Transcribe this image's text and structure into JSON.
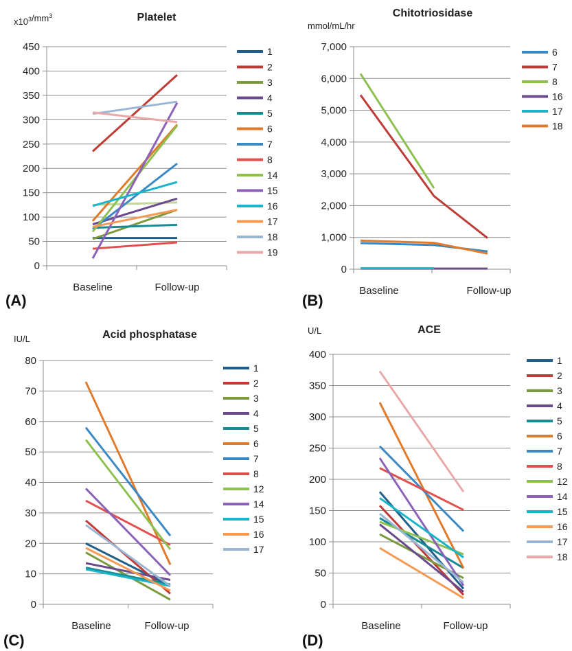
{
  "chart_data": [
    {
      "id": "A",
      "type": "line",
      "title": "Platelet",
      "ylabel": "x10³/mm³",
      "panel_label": "(A)",
      "categories": [
        "Baseline",
        "Follow-up"
      ],
      "ylim": [
        0,
        450
      ],
      "yticks": [
        0,
        50,
        100,
        150,
        200,
        250,
        300,
        350,
        400,
        450
      ],
      "ytick_labels": [
        "0",
        "50",
        "100",
        "150",
        "200",
        "250",
        "300",
        "350",
        "400",
        "450"
      ],
      "series": [
        {
          "name": "1",
          "color": "#1f5f8b",
          "values": [
            57,
            57
          ]
        },
        {
          "name": "2",
          "color": "#be3b36",
          "values": [
            235,
            392
          ]
        },
        {
          "name": "3",
          "color": "#7a9a3c",
          "values": [
            55,
            115
          ]
        },
        {
          "name": "4",
          "color": "#6a4a8c",
          "values": [
            85,
            138
          ]
        },
        {
          "name": "5",
          "color": "#178a92",
          "values": [
            78,
            84
          ]
        },
        {
          "name": "6",
          "color": "#e07b2c",
          "values": [
            92,
            290
          ]
        },
        {
          "name": "7",
          "color": "#3a89c4",
          "values": [
            75,
            210
          ]
        },
        {
          "name": "8",
          "color": "#e0504d",
          "values": [
            35,
            48
          ]
        },
        {
          "name": "14",
          "color": "#8cc04f",
          "values": [
            70,
            288
          ]
        },
        {
          "name": "15",
          "color": "#8b62b8",
          "values": [
            15,
            335
          ]
        },
        {
          "name": "16",
          "color": "#1ab5c9",
          "values": [
            123,
            172
          ]
        },
        {
          "name": "17",
          "color": "#f59a52",
          "values": [
            80,
            115
          ]
        },
        {
          "name": "18",
          "color": "#9ab6d4",
          "values": [
            312,
            337
          ]
        },
        {
          "name": "19",
          "color": "#e8a8a8",
          "values": [
            315,
            295
          ]
        }
      ],
      "extra_lines": [
        {
          "color": "#c3d69b",
          "values": [
            125,
            130
          ]
        }
      ]
    },
    {
      "id": "B",
      "type": "line",
      "title": "Chitotriosidase",
      "ylabel": "mmol/mL/hr",
      "panel_label": "(B)",
      "categories": [
        "Baseline",
        "Follow-up"
      ],
      "ylim": [
        0,
        7000
      ],
      "yticks": [
        0,
        1000,
        2000,
        3000,
        4000,
        5000,
        6000,
        7000
      ],
      "ytick_labels": [
        "0",
        "1,000",
        "2,000",
        "3,000",
        "4,000",
        "5,000",
        "6,000",
        "7,000"
      ],
      "series": [
        {
          "name": "6",
          "color": "#3a89c4",
          "points": [
            [
              0,
              820
            ],
            [
              1,
              760
            ],
            [
              2,
              560
            ]
          ]
        },
        {
          "name": "7",
          "color": "#be3b36",
          "points": [
            [
              0,
              5480
            ],
            [
              1,
              2300
            ],
            [
              2,
              980
            ]
          ]
        },
        {
          "name": "8",
          "color": "#8cc04f",
          "points": [
            [
              0,
              6150
            ],
            [
              1,
              2550
            ]
          ]
        },
        {
          "name": "16",
          "color": "#6a4a8c",
          "points": [
            [
              0,
              20
            ],
            [
              1,
              20
            ],
            [
              2,
              20
            ]
          ]
        },
        {
          "name": "17",
          "color": "#1ab5c9",
          "points": [
            [
              0,
              30
            ],
            [
              1,
              30
            ]
          ]
        },
        {
          "name": "18",
          "color": "#e07b2c",
          "points": [
            [
              0,
              900
            ],
            [
              1,
              830
            ],
            [
              2,
              490
            ]
          ]
        }
      ]
    },
    {
      "id": "C",
      "type": "line",
      "title": "Acid phosphatase",
      "ylabel": "IU/L",
      "panel_label": "(C)",
      "categories": [
        "Baseline",
        "Follow-up"
      ],
      "ylim": [
        0,
        80
      ],
      "yticks": [
        0,
        10,
        20,
        30,
        40,
        50,
        60,
        70,
        80
      ],
      "ytick_labels": [
        "0",
        "10",
        "20",
        "30",
        "40",
        "50",
        "60",
        "70",
        "80"
      ],
      "series": [
        {
          "name": "1",
          "color": "#1f5f8b",
          "values": [
            20,
            6
          ]
        },
        {
          "name": "2",
          "color": "#be3b36",
          "values": [
            27.5,
            3.5
          ]
        },
        {
          "name": "3",
          "color": "#7a9a3c",
          "values": [
            17,
            1.5
          ]
        },
        {
          "name": "4",
          "color": "#6a4a8c",
          "values": [
            13.5,
            8
          ]
        },
        {
          "name": "5",
          "color": "#178a92",
          "values": [
            12,
            6.5
          ]
        },
        {
          "name": "6",
          "color": "#e07b2c",
          "values": [
            73,
            13
          ]
        },
        {
          "name": "7",
          "color": "#3a89c4",
          "values": [
            58,
            22.5
          ]
        },
        {
          "name": "8",
          "color": "#e0504d",
          "values": [
            34,
            19.5
          ]
        },
        {
          "name": "12",
          "color": "#8cc04f",
          "values": [
            54,
            18
          ]
        },
        {
          "name": "14",
          "color": "#8b62b8",
          "values": [
            38,
            9.5
          ]
        },
        {
          "name": "15",
          "color": "#1ab5c9",
          "values": [
            11.5,
            6
          ]
        },
        {
          "name": "16",
          "color": "#f59a52",
          "values": [
            18.5,
            4.5
          ]
        },
        {
          "name": "17",
          "color": "#9ab6d4",
          "values": [
            26,
            6
          ]
        }
      ]
    },
    {
      "id": "D",
      "type": "line",
      "title": "ACE",
      "ylabel": "U/L",
      "panel_label": "(D)",
      "categories": [
        "Baseline",
        "Follow-up"
      ],
      "ylim": [
        0,
        400
      ],
      "yticks": [
        0,
        50,
        100,
        150,
        200,
        250,
        300,
        350,
        400
      ],
      "ytick_labels": [
        "0",
        "50",
        "100",
        "150",
        "200",
        "250",
        "300",
        "350",
        "400"
      ],
      "series": [
        {
          "name": "1",
          "color": "#1f5f8b",
          "values": [
            180,
            25
          ]
        },
        {
          "name": "2",
          "color": "#be3b36",
          "values": [
            158,
            15
          ]
        },
        {
          "name": "3",
          "color": "#7a9a3c",
          "values": [
            112,
            42
          ]
        },
        {
          "name": "4",
          "color": "#6a4a8c",
          "values": [
            128,
            20
          ]
        },
        {
          "name": "5",
          "color": "#178a92",
          "values": [
            138,
            58
          ]
        },
        {
          "name": "6",
          "color": "#e07b2c",
          "values": [
            323,
            58
          ]
        },
        {
          "name": "7",
          "color": "#3a89c4",
          "values": [
            253,
            117
          ]
        },
        {
          "name": "8",
          "color": "#e0504d",
          "values": [
            218,
            151
          ]
        },
        {
          "name": "12",
          "color": "#8cc04f",
          "values": [
            132,
            80
          ]
        },
        {
          "name": "14",
          "color": "#8b62b8",
          "values": [
            234,
            30
          ]
        },
        {
          "name": "15",
          "color": "#1ab5c9",
          "values": [
            170,
            75
          ]
        },
        {
          "name": "16",
          "color": "#f59a52",
          "values": [
            90,
            10
          ]
        },
        {
          "name": "17",
          "color": "#9ab6d4",
          "values": [
            145,
            35
          ]
        },
        {
          "name": "18",
          "color": "#e8a8a8",
          "values": [
            373,
            180
          ]
        }
      ]
    }
  ]
}
